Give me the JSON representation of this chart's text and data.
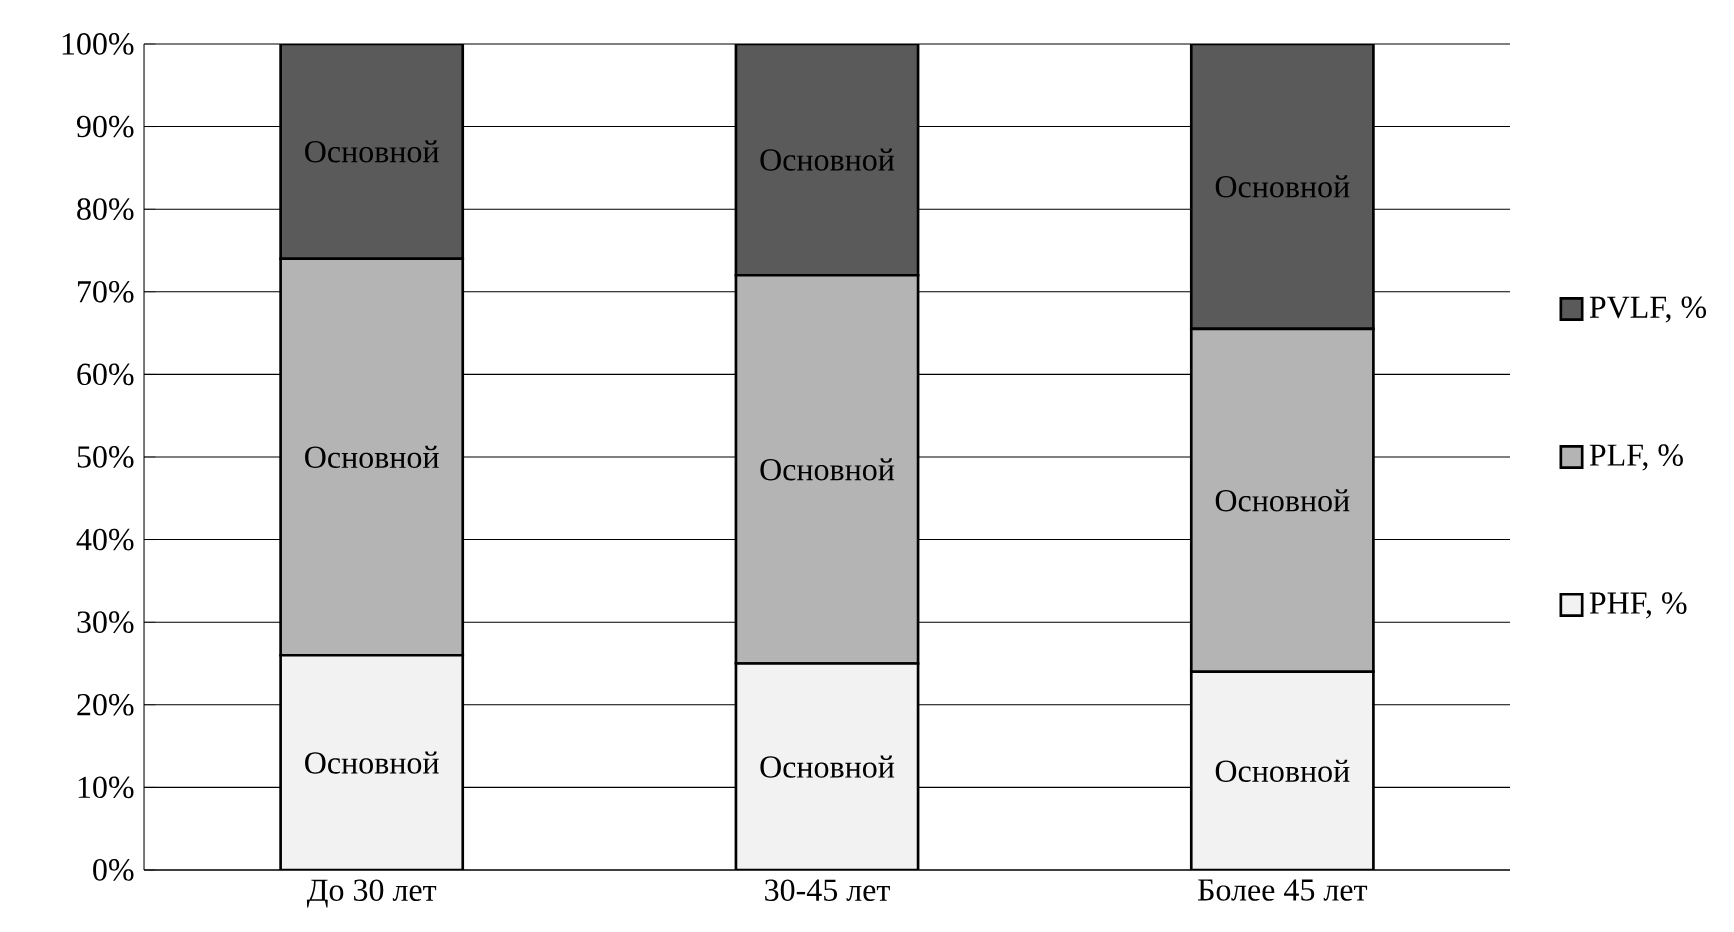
{
  "chart_data": {
    "type": "bar",
    "stacked": true,
    "categories": [
      "До 30 лет",
      "30-45 лет",
      "Более 45 лет"
    ],
    "series": [
      {
        "name": "PHF, %",
        "color": "#f2f2f2",
        "values": [
          26,
          25,
          24
        ],
        "value_labels": [
          "Основной",
          "Основной",
          "Основной"
        ]
      },
      {
        "name": "PLF, %",
        "color": "#b4b4b4",
        "values": [
          48,
          47,
          41.5
        ],
        "value_labels": [
          "Основной",
          "Основной",
          "Основной"
        ]
      },
      {
        "name": "PVLF, %",
        "color": "#5a5a5a",
        "values": [
          26,
          28,
          34.5
        ],
        "value_labels": [
          "Основной",
          "Основной",
          "Основной"
        ]
      }
    ],
    "ylim": [
      0,
      100
    ],
    "yticks": [
      {
        "value": 0,
        "label": "0%"
      },
      {
        "value": 10,
        "label": "10%"
      },
      {
        "value": 20,
        "label": "20%"
      },
      {
        "value": 30,
        "label": "30%"
      },
      {
        "value": 40,
        "label": "40%"
      },
      {
        "value": 50,
        "label": "50%"
      },
      {
        "value": 60,
        "label": "60%"
      },
      {
        "value": 70,
        "label": "70%"
      },
      {
        "value": 80,
        "label": "80%"
      },
      {
        "value": 90,
        "label": "90%"
      },
      {
        "value": 100,
        "label": "100%"
      }
    ],
    "grid": "y",
    "legend": "right"
  }
}
